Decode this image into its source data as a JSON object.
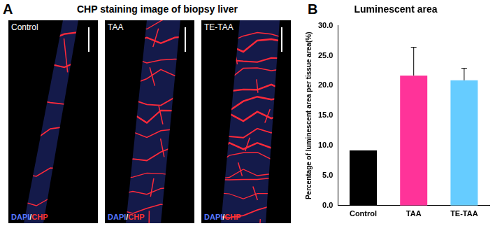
{
  "panel_a": {
    "letter": "A",
    "title": "CHP staining image of biopsy liver",
    "images": [
      {
        "label": "Control",
        "stain": [
          "DAPI",
          "/",
          "CHP"
        ]
      },
      {
        "label": "TAA",
        "stain": [
          "DAPI",
          "/",
          "CHP"
        ]
      },
      {
        "label": "TE-TAA",
        "stain": [
          "DAPI",
          "/",
          "CHP"
        ]
      }
    ]
  },
  "chart_data": {
    "type": "bar",
    "letter": "B",
    "title": "Luminescent area",
    "y_label": "Percentage of luminescent area per tissue area(%)",
    "categories": [
      "Control",
      "TAA",
      "TE-TAA"
    ],
    "values": [
      9.2,
      21.7,
      20.9
    ],
    "errors": [
      null,
      4.7,
      2.0
    ],
    "colors": [
      "#000000",
      "#ff3399",
      "#66ccff"
    ],
    "ylim": [
      0,
      30
    ],
    "yticks": [
      {
        "value": 0,
        "label": "0.0"
      },
      {
        "value": 5,
        "label": "5.0"
      },
      {
        "value": 10,
        "label": "10.0"
      },
      {
        "value": 15,
        "label": "15.0"
      },
      {
        "value": 20,
        "label": "20.0"
      },
      {
        "value": 25,
        "label": "25.0"
      },
      {
        "value": 30,
        "label": "30.0"
      }
    ],
    "grid": false
  }
}
